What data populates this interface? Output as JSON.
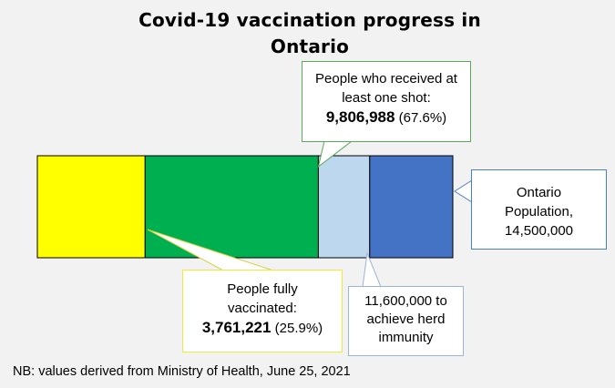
{
  "chart_data": {
    "type": "bar",
    "title": "Covid-19 vaccination progress in Ontario",
    "orientation": "horizontal-stacked",
    "segments": [
      {
        "value": 3761221,
        "color": "#ffff00"
      },
      {
        "value": 6045767,
        "color": "#00b050"
      },
      {
        "value": 1793012,
        "color": "#bdd7ee"
      },
      {
        "value": 2900000,
        "color": "#4472c4"
      }
    ],
    "total": 14500000,
    "annotations": {
      "one_shot": {
        "line1": "People who received at",
        "line2": "least one shot:",
        "value": "9,806,988",
        "pct": "(67.6%)"
      },
      "population": {
        "line1": "Ontario",
        "line2": "Population,",
        "line3": "14,500,000"
      },
      "fully": {
        "line1": "People fully",
        "line2": "vaccinated:",
        "value": "3,761,221",
        "pct": "(25.9%)"
      },
      "herd": {
        "line1": "11,600,000 to",
        "line2": "achieve herd",
        "line3": "immunity"
      }
    },
    "footnote": "NB: values derived from Ministry of Health, June 25, 2021"
  },
  "colors": {
    "yellow": "#ffff00",
    "green": "#00b050",
    "light_blue": "#bdd7ee",
    "blue": "#4472c4"
  }
}
